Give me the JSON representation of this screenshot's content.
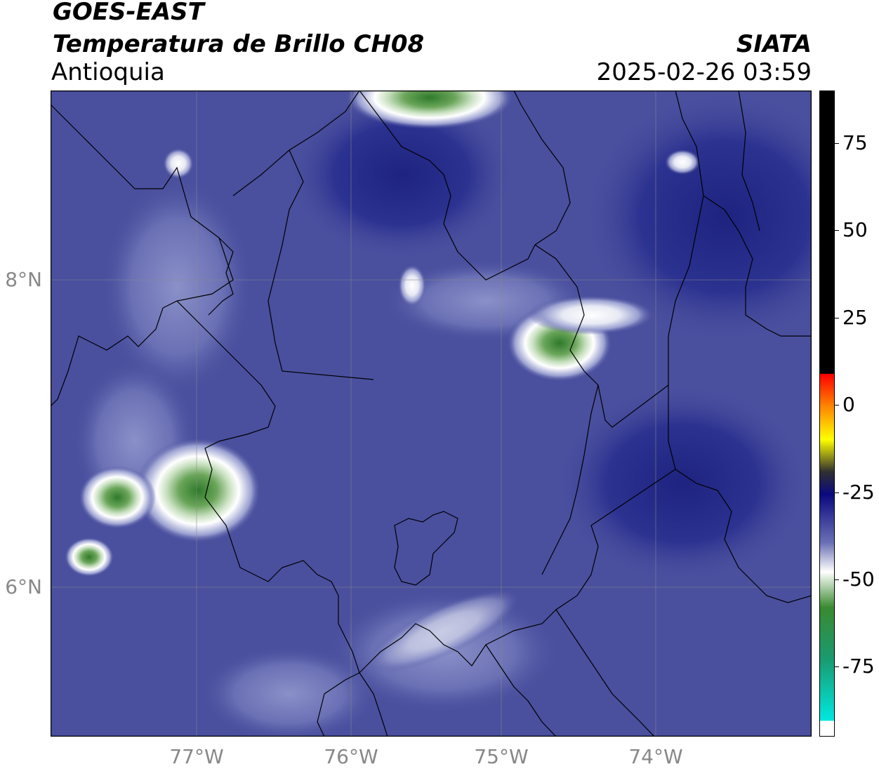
{
  "header": {
    "satellite": "GOES-EAST",
    "product": "Temperatura de Brillo CH08",
    "region": "Antioquia",
    "source": "SIATA",
    "datetime": "2025-02-26 03:59"
  },
  "map": {
    "extent_lon": [
      -77.95,
      -73.05
    ],
    "extent_lat": [
      5.05,
      9.25
    ],
    "lat_labels": [
      {
        "value": 8,
        "text": "8°N"
      },
      {
        "value": 6,
        "text": "6°N"
      }
    ],
    "lon_labels": [
      {
        "value": -77,
        "text": "77°W"
      },
      {
        "value": -76,
        "text": "76°W"
      },
      {
        "value": -75,
        "text": "75°W"
      },
      {
        "value": -74,
        "text": "74°W"
      }
    ],
    "gridlines": true,
    "background_color": "#4a4f9e"
  },
  "colorbar": {
    "range": [
      -95,
      90
    ],
    "ticks": [
      {
        "value": 75,
        "text": "75"
      },
      {
        "value": 50,
        "text": "50"
      },
      {
        "value": 25,
        "text": "25"
      },
      {
        "value": 0,
        "text": "0"
      },
      {
        "value": -25,
        "text": "-25"
      },
      {
        "value": -50,
        "text": "-50"
      },
      {
        "value": -75,
        "text": "-75"
      }
    ],
    "colors": {
      "black": "#000000",
      "red": "#ff0000",
      "orange": "#ff9900",
      "yellow": "#ffff00",
      "dark": "#303030",
      "navy": "#0a0a80",
      "blue": "#4a4f9e",
      "white": "#ffffff",
      "green": "#3a8a30",
      "cyan": "#00e8e0"
    }
  }
}
